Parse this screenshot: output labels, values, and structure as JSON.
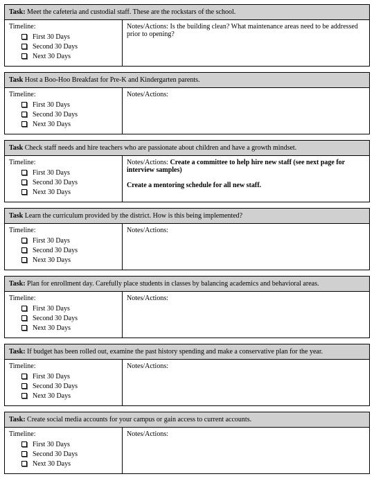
{
  "labels": {
    "task": "Task:",
    "task_nocol": "Task",
    "timeline": "Timeline:",
    "notes": "Notes/Actions:"
  },
  "timeline_items": [
    "First 30 Days",
    "Second 30 Days",
    "Next 30 Days"
  ],
  "tasks": [
    {
      "label_key": "task",
      "title": " Meet the cafeteria and custodial staff. These are the rockstars of the school.",
      "notes_plain": "  Is the building clean?  What maintenance areas need to be addressed prior to opening?",
      "notes_bold": ""
    },
    {
      "label_key": "task_nocol",
      "title": "  Host a Boo-Hoo Breakfast for Pre-K and Kindergarten parents.",
      "notes_plain": "",
      "notes_bold": ""
    },
    {
      "label_key": "task_nocol",
      "title": "  Check staff needs and hire teachers who are passionate about children and have a growth mindset.",
      "notes_plain": "  ",
      "notes_bold": "Create a committee to help hire new staff (see next page for interview samples)\n\nCreate a mentoring schedule for all new staff."
    },
    {
      "label_key": "task_nocol",
      "title": "  Learn the curriculum provided by the district.  How is this being implemented?",
      "notes_plain": "",
      "notes_bold": ""
    },
    {
      "label_key": "task",
      "title": " Plan for enrollment day.  Carefully place students in classes by balancing academics and behavioral areas.",
      "notes_plain": "",
      "notes_bold": ""
    },
    {
      "label_key": "task",
      "title": " If budget has been rolled out, examine the past history spending and make a conservative plan for the year.",
      "notes_plain": "",
      "notes_bold": ""
    },
    {
      "label_key": "task",
      "title": " Create social media accounts for your campus or gain access to current accounts.",
      "notes_plain": "",
      "notes_bold": ""
    }
  ]
}
